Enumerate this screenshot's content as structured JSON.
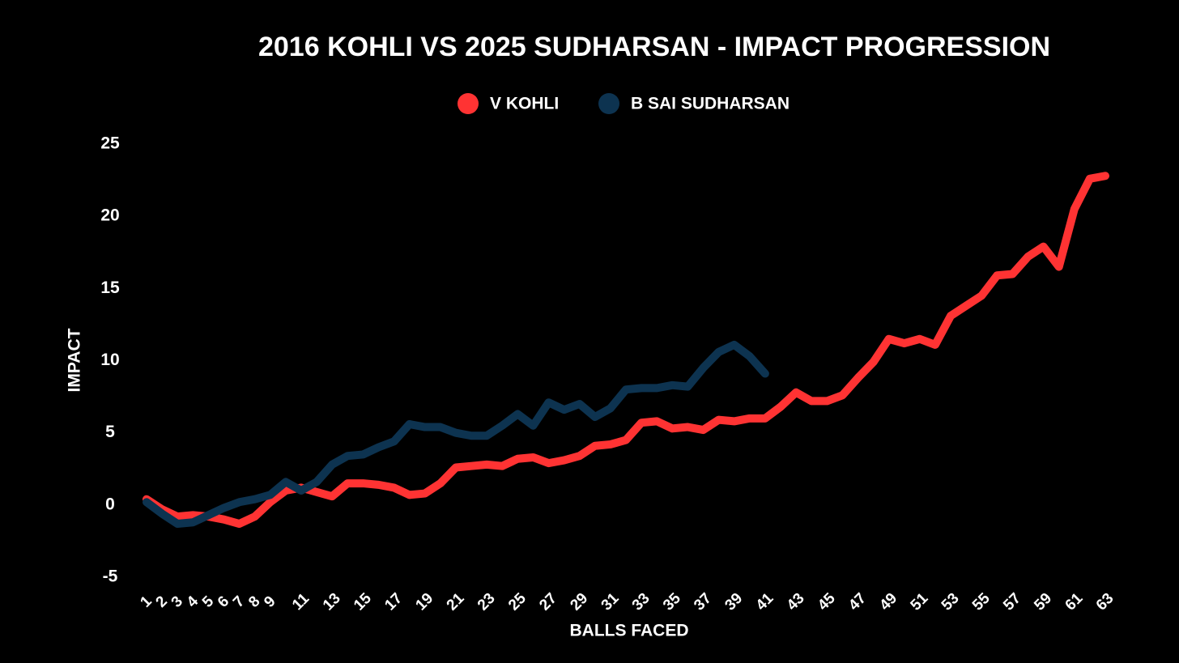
{
  "chart_data": {
    "type": "line",
    "title": "2016 KOHLI VS 2025 SUDHARSAN - IMPACT PROGRESSION",
    "xlabel": "BALLS FACED",
    "ylabel": "IMPACT",
    "x": [
      1,
      2,
      3,
      4,
      5,
      6,
      7,
      8,
      9,
      10,
      11,
      12,
      13,
      14,
      15,
      16,
      17,
      18,
      19,
      20,
      21,
      22,
      23,
      24,
      25,
      26,
      27,
      28,
      29,
      30,
      31,
      32,
      33,
      34,
      35,
      36,
      37,
      38,
      39,
      40,
      41,
      42,
      43,
      44,
      45,
      46,
      47,
      48,
      49,
      50,
      51,
      52,
      53,
      54,
      55,
      56,
      57,
      58,
      59,
      60,
      61,
      62,
      63
    ],
    "series": [
      {
        "name": "V KOHLI",
        "color": "#ff3333",
        "values": [
          0.4,
          -0.3,
          -0.8,
          -0.7,
          -0.8,
          -1.0,
          -1.3,
          -0.8,
          0.2,
          1.0,
          1.2,
          0.9,
          0.6,
          1.5,
          1.5,
          1.4,
          1.2,
          0.7,
          0.8,
          1.5,
          2.6,
          2.7,
          2.8,
          2.7,
          3.2,
          3.3,
          2.9,
          3.1,
          3.4,
          4.1,
          4.2,
          4.5,
          5.7,
          5.8,
          5.3,
          5.4,
          5.2,
          5.9,
          5.8,
          6.0,
          6.0,
          6.8,
          7.8,
          7.2,
          7.2,
          7.6,
          8.8,
          9.9,
          11.5,
          11.2,
          11.5,
          11.1,
          13.1,
          13.8,
          14.5,
          15.9,
          16.0,
          17.2,
          17.9,
          16.5,
          20.5,
          22.6,
          22.8
        ]
      },
      {
        "name": "B SAI SUDHARSAN",
        "color": "#0d3350",
        "values": [
          0.2,
          -0.6,
          -1.3,
          -1.2,
          -0.7,
          -0.2,
          0.2,
          0.4,
          0.7,
          1.6,
          1.0,
          1.6,
          2.8,
          3.4,
          3.5,
          4.0,
          4.4,
          5.6,
          5.4,
          5.4,
          5.0,
          4.8,
          4.8,
          5.5,
          6.3,
          5.5,
          7.1,
          6.6,
          7.0,
          6.1,
          6.7,
          8.0,
          8.1,
          8.1,
          8.3,
          8.2,
          9.5,
          10.6,
          11.1,
          10.3,
          9.1,
          null,
          null,
          null,
          null,
          null,
          null,
          null,
          null,
          null,
          null,
          null,
          null,
          null,
          null,
          null,
          null,
          null,
          null,
          null,
          null,
          null,
          null
        ]
      }
    ],
    "xlim": [
      1,
      63
    ],
    "xticks": [
      1,
      2,
      3,
      4,
      5,
      6,
      7,
      8,
      9,
      11,
      13,
      15,
      17,
      19,
      21,
      23,
      25,
      27,
      29,
      31,
      33,
      35,
      37,
      39,
      41,
      43,
      45,
      47,
      49,
      51,
      53,
      55,
      57,
      59,
      61,
      63
    ],
    "ylim": [
      -5,
      25
    ],
    "yticks": [
      -5,
      0,
      5,
      10,
      15,
      20,
      25
    ],
    "grid": false,
    "legend": "top"
  }
}
